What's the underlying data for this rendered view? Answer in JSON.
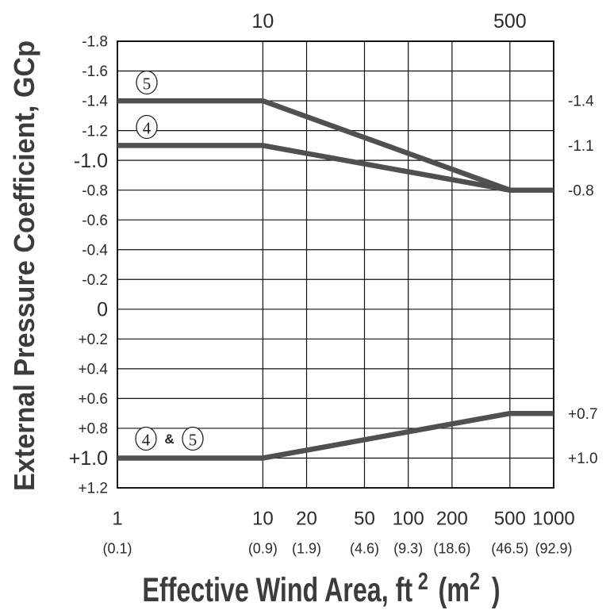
{
  "chart_data": {
    "type": "line",
    "ylabel": "External Pressure Coefficient, GCp",
    "xlabel": {
      "text": "Effective Wind Area, ft",
      "exp1": "2",
      "metric": "(m",
      "exp2": "2",
      "close": ")"
    },
    "x_scale": "log",
    "xlim": [
      1,
      1000
    ],
    "ylim": [
      -1.8,
      1.2
    ],
    "y_inverted": true,
    "grid": true,
    "x": [
      1,
      10,
      500,
      1000
    ],
    "series": [
      {
        "name": "5",
        "values": [
          -1.4,
          -1.4,
          -0.8,
          -0.8
        ]
      },
      {
        "name": "4",
        "values": [
          -1.1,
          -1.1,
          -0.8,
          -0.8
        ]
      },
      {
        "name": "4 & 5",
        "values": [
          1.0,
          1.0,
          0.7,
          0.7
        ]
      }
    ],
    "x_ticks_bottom": [
      {
        "value": 1,
        "label": "1",
        "metric": "(0.1)"
      },
      {
        "value": 10,
        "label": "10",
        "metric": "(0.9)"
      },
      {
        "value": 20,
        "label": "20",
        "metric": "(1.9)"
      },
      {
        "value": 50,
        "label": "50",
        "metric": "(4.6)"
      },
      {
        "value": 100,
        "label": "100",
        "metric": "(9.3)"
      },
      {
        "value": 200,
        "label": "200",
        "metric": "(18.6)"
      },
      {
        "value": 500,
        "label": "500",
        "metric": "(46.5)"
      },
      {
        "value": 1000,
        "label": "1000",
        "metric": "(92.9)"
      }
    ],
    "x_ticks_top": [
      {
        "value": 10,
        "label": "10"
      },
      {
        "value": 500,
        "label": "500"
      }
    ],
    "y_ticks_left": [
      {
        "value": -1.8,
        "label": "-1.8"
      },
      {
        "value": -1.6,
        "label": "-1.6"
      },
      {
        "value": -1.4,
        "label": "-1.4"
      },
      {
        "value": -1.2,
        "label": "-1.2"
      },
      {
        "value": -1.0,
        "label": "-1.0"
      },
      {
        "value": -0.8,
        "label": "-0.8"
      },
      {
        "value": -0.6,
        "label": "-0.6"
      },
      {
        "value": -0.4,
        "label": "-0.4"
      },
      {
        "value": -0.2,
        "label": "-0.2"
      },
      {
        "value": 0,
        "label": "0"
      },
      {
        "value": 0.2,
        "label": "+0.2"
      },
      {
        "value": 0.4,
        "label": "+0.4"
      },
      {
        "value": 0.6,
        "label": "+0.6"
      },
      {
        "value": 0.8,
        "label": "+0.8"
      },
      {
        "value": 1.0,
        "label": "+1.0"
      },
      {
        "value": 1.2,
        "label": "+1.2"
      }
    ],
    "y_ticks_right": [
      {
        "value": -1.4,
        "label": "-1.4"
      },
      {
        "value": -1.1,
        "label": "-1.1"
      },
      {
        "value": -0.8,
        "label": "-0.8"
      },
      {
        "value": 0.7,
        "label": "+0.7"
      },
      {
        "value": 1.0,
        "label": "+1.0"
      }
    ],
    "colors": {
      "series_line": "#505050",
      "grid": "#111111",
      "label_circle": "#222222"
    }
  }
}
